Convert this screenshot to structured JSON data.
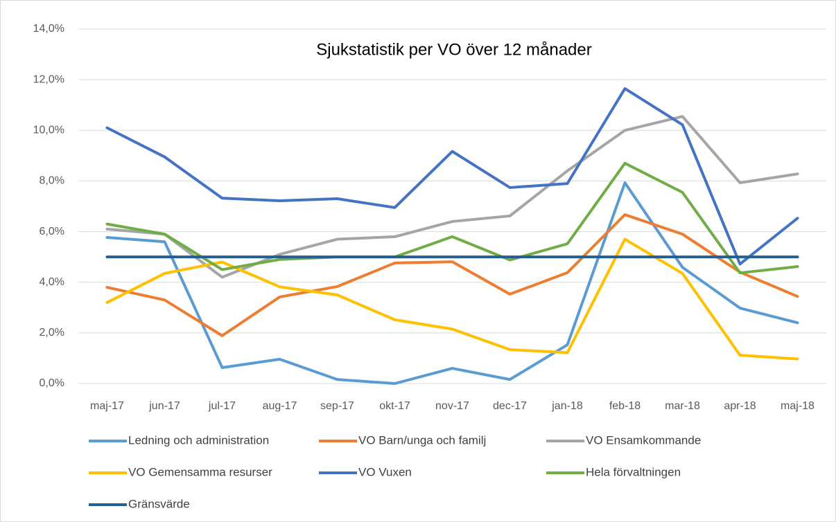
{
  "chart_data": {
    "type": "line",
    "title": "Sjukstatistik per VO över 12 månader",
    "categories": [
      "maj-17",
      "jun-17",
      "jul-17",
      "aug-17",
      "sep-17",
      "okt-17",
      "nov-17",
      "dec-17",
      "jan-18",
      "feb-18",
      "mar-18",
      "apr-18",
      "maj-18"
    ],
    "series": [
      {
        "name": "Ledning och administration",
        "color": "#5b9bd5",
        "values": [
          5.77,
          5.6,
          0.63,
          0.96,
          0.16,
          0,
          0.6,
          0.16,
          1.53,
          7.93,
          4.59,
          2.98,
          2.4
        ]
      },
      {
        "name": "VO Barn/unga och familj",
        "color": "#ed7d31",
        "values": [
          3.8,
          3.3,
          1.89,
          3.42,
          3.83,
          4.76,
          4.81,
          3.53,
          4.38,
          6.67,
          5.9,
          4.4,
          3.44
        ]
      },
      {
        "name": "VO Ensamkommande",
        "color": "#a5a5a5",
        "values": [
          6.1,
          5.9,
          4.2,
          5.1,
          5.7,
          5.8,
          6.4,
          6.62,
          8.4,
          10.0,
          10.55,
          7.93,
          8.28
        ]
      },
      {
        "name": "VO Gemensamma resurser",
        "color": "#ffc000",
        "values": [
          3.2,
          4.35,
          4.8,
          3.82,
          3.5,
          2.52,
          2.15,
          1.34,
          1.22,
          5.7,
          4.35,
          1.12,
          0.97
        ]
      },
      {
        "name": "VO Vuxen",
        "color": "#4472c4",
        "values": [
          10.1,
          8.95,
          7.32,
          7.22,
          7.3,
          6.95,
          9.17,
          7.74,
          7.9,
          11.65,
          10.22,
          4.72,
          6.53
        ]
      },
      {
        "name": "Hela förvaltningen",
        "color": "#70ad47",
        "values": [
          6.3,
          5.9,
          4.5,
          4.9,
          5.0,
          5.0,
          5.8,
          4.88,
          5.52,
          8.7,
          7.55,
          4.37,
          4.62
        ]
      },
      {
        "name": "Gränsvärde",
        "color": "#255e91",
        "values": [
          5,
          5,
          5,
          5,
          5,
          5,
          5,
          5,
          5,
          5,
          5,
          5,
          5
        ]
      }
    ],
    "ylim": [
      0,
      14
    ],
    "yticks": [
      {
        "value": 0,
        "label": "0,0%"
      },
      {
        "value": 2,
        "label": "2,0%"
      },
      {
        "value": 4,
        "label": "4,0%"
      },
      {
        "value": 6,
        "label": "6,0%"
      },
      {
        "value": 8,
        "label": "8,0%"
      },
      {
        "value": 10,
        "label": "10,0%"
      },
      {
        "value": 12,
        "label": "12,0%"
      },
      {
        "value": 14,
        "label": "14,0%"
      }
    ],
    "grid": true,
    "legend": "bottom"
  }
}
